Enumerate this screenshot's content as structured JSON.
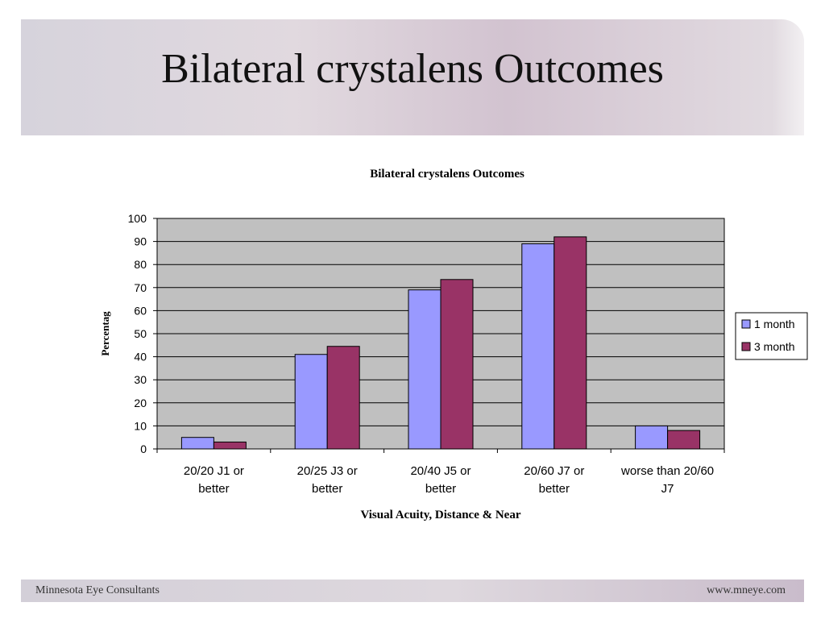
{
  "slide": {
    "title": "Bilateral crystalens Outcomes",
    "footer_left": "Minnesota Eye Consultants",
    "footer_right": "www.mneye.com"
  },
  "chart_data": {
    "type": "bar",
    "title": "Bilateral crystalens Outcomes",
    "xlabel": "Visual Acuity, Distance & Near",
    "ylabel": "Percentag",
    "ylim": [
      0,
      100
    ],
    "yticks": [
      0,
      10,
      20,
      30,
      40,
      50,
      60,
      70,
      80,
      90,
      100
    ],
    "grid": true,
    "legend_position": "right",
    "categories": [
      [
        "20/20 J1 or",
        "better"
      ],
      [
        "20/25 J3 or",
        "better"
      ],
      [
        "20/40 J5 or",
        "better"
      ],
      [
        "20/60 J7 or",
        "better"
      ],
      [
        "worse than 20/60",
        "J7"
      ]
    ],
    "series": [
      {
        "name": "1 month",
        "color": "#9999ff",
        "values": [
          5,
          41,
          69,
          89,
          10
        ]
      },
      {
        "name": "3 month",
        "color": "#993366",
        "values": [
          3,
          44.5,
          73.5,
          92,
          8
        ]
      }
    ],
    "plot_background": "#c0c0c0"
  }
}
